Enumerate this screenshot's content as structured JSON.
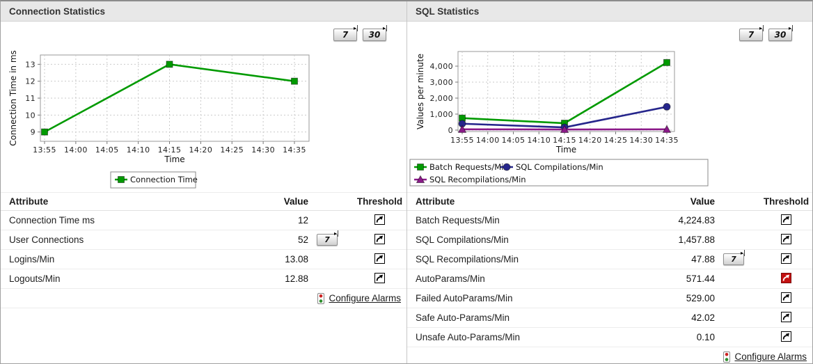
{
  "colors": {
    "accent_green": "#009a00",
    "accent_navy": "#26268c",
    "accent_purple": "#8b1a89",
    "alarm_red": "#c41111"
  },
  "panels": [
    {
      "title": "Connection Statistics",
      "range_buttons": [
        "7",
        "30"
      ],
      "chart_data": {
        "type": "line",
        "title": "",
        "xlabel": "Time",
        "ylabel": "Connection Time in ms",
        "x_ticks": [
          "13:55",
          "14:00",
          "14:05",
          "14:10",
          "14:15",
          "14:20",
          "14:25",
          "14:30",
          "14:35"
        ],
        "y_ticks": [
          9,
          10,
          11,
          12,
          13
        ],
        "y_tick_labels": [
          "9",
          "10",
          "11",
          "12",
          "13"
        ],
        "ylim": [
          8.45,
          13.55
        ],
        "grid": true,
        "legend_position": "bottom",
        "series": [
          {
            "name": "Connection Time",
            "color": "#009a00",
            "marker": "square",
            "points": [
              {
                "x": "13:55",
                "y": 9
              },
              {
                "x": "14:15",
                "y": 13
              },
              {
                "x": "14:35",
                "y": 12
              }
            ]
          }
        ]
      },
      "table": {
        "headers": [
          "Attribute",
          "Value",
          "Threshold"
        ],
        "rows": [
          {
            "attribute": "Connection Time ms",
            "value": "12",
            "history_button": "",
            "alarm": false
          },
          {
            "attribute": "User Connections",
            "value": "52",
            "history_button": "7",
            "alarm": false
          },
          {
            "attribute": "Logins/Min",
            "value": "13.08",
            "history_button": "",
            "alarm": false
          },
          {
            "attribute": "Logouts/Min",
            "value": "12.88",
            "history_button": "",
            "alarm": false
          }
        ],
        "configure_alarms_label": "Configure Alarms"
      }
    },
    {
      "title": "SQL Statistics",
      "range_buttons": [
        "7",
        "30"
      ],
      "chart_data": {
        "type": "line",
        "title": "",
        "xlabel": "Time",
        "ylabel": "Values per minute",
        "x_ticks": [
          "13:55",
          "14:00",
          "14:05",
          "14:10",
          "14:15",
          "14:20",
          "14:25",
          "14:30",
          "14:35"
        ],
        "y_ticks": [
          0,
          1000,
          2000,
          3000,
          4000
        ],
        "y_tick_labels": [
          "0",
          "1,000",
          "2,000",
          "3,000",
          "4,000"
        ],
        "ylim": [
          -90,
          4915
        ],
        "grid": true,
        "legend_position": "bottom",
        "series": [
          {
            "name": "Batch Requests/Min",
            "color": "#009a00",
            "marker": "square",
            "points": [
              {
                "x": "13:55",
                "y": 750
              },
              {
                "x": "14:15",
                "y": 430
              },
              {
                "x": "14:35",
                "y": 4224.83
              }
            ]
          },
          {
            "name": "SQL Compilations/Min",
            "color": "#26268c",
            "marker": "circle",
            "points": [
              {
                "x": "13:55",
                "y": 400
              },
              {
                "x": "14:15",
                "y": 170
              },
              {
                "x": "14:35",
                "y": 1457.88
              }
            ]
          },
          {
            "name": "SQL Recompilations/Min",
            "color": "#8b1a89",
            "marker": "triangle",
            "points": [
              {
                "x": "13:55",
                "y": 48
              },
              {
                "x": "14:15",
                "y": 40
              },
              {
                "x": "14:35",
                "y": 47.88
              }
            ]
          }
        ]
      },
      "table": {
        "headers": [
          "Attribute",
          "Value",
          "Threshold"
        ],
        "rows": [
          {
            "attribute": "Batch Requests/Min",
            "value": "4,224.83",
            "history_button": "",
            "alarm": false
          },
          {
            "attribute": "SQL Compilations/Min",
            "value": "1,457.88",
            "history_button": "",
            "alarm": false
          },
          {
            "attribute": "SQL Recompilations/Min",
            "value": "47.88",
            "history_button": "7",
            "alarm": false
          },
          {
            "attribute": "AutoParams/Min",
            "value": "571.44",
            "history_button": "",
            "alarm": true
          },
          {
            "attribute": "Failed AutoParams/Min",
            "value": "529.00",
            "history_button": "",
            "alarm": false
          },
          {
            "attribute": "Safe Auto-Params/Min",
            "value": "42.02",
            "history_button": "",
            "alarm": false
          },
          {
            "attribute": "Unsafe Auto-Params/Min",
            "value": "0.10",
            "history_button": "",
            "alarm": false
          }
        ],
        "configure_alarms_label": "Configure Alarms"
      }
    }
  ]
}
